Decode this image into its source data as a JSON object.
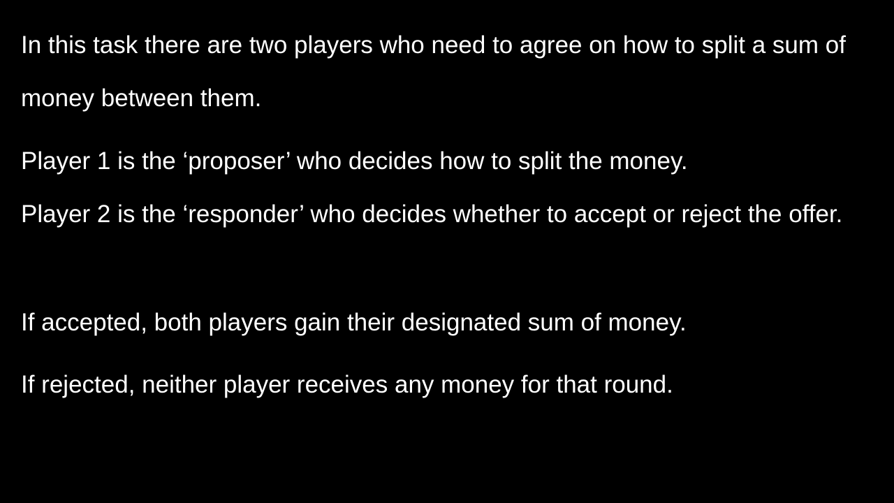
{
  "slide": {
    "background_color": "#000000",
    "text_color": "#ffffff",
    "paragraphs": [
      "In this task there are two players who need to agree on how to split a sum of money between them.",
      "Player 1 is the ‘proposer’ who decides how to split the money.",
      "Player 2 is the ‘responder’ who decides whether to accept or reject the offer.",
      "If accepted, both players gain their designated sum of money.",
      "If rejected, neither player receives any money for that round."
    ]
  }
}
